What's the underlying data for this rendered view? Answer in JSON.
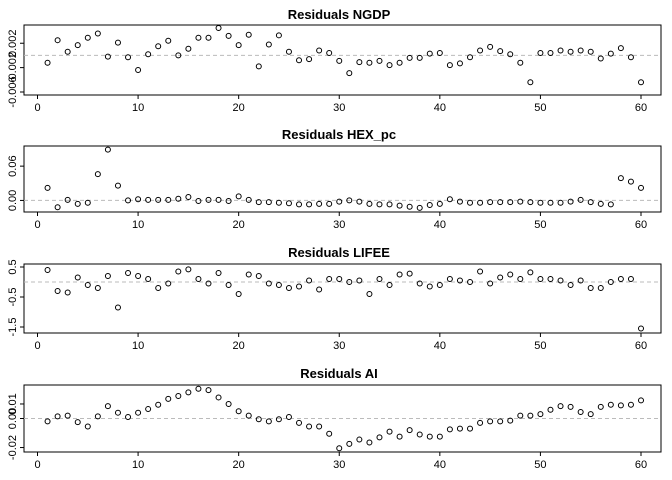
{
  "chart_data": [
    {
      "type": "scatter",
      "title": "Residuals NGDP",
      "xlabel": "",
      "ylabel": "",
      "xlim": [
        1,
        60
      ],
      "ylim": [
        -0.006,
        0.0045
      ],
      "xticks": [
        "0",
        "10",
        "20",
        "30",
        "40",
        "50",
        "60"
      ],
      "yticks": [
        "-0.006",
        "-0.002",
        "0.002"
      ],
      "ytick_values": [
        -0.006,
        -0.002,
        0.002
      ],
      "reference_line": 0,
      "x": [
        1,
        2,
        3,
        4,
        5,
        6,
        7,
        8,
        9,
        10,
        11,
        12,
        13,
        14,
        15,
        16,
        17,
        18,
        19,
        20,
        21,
        22,
        23,
        24,
        25,
        26,
        27,
        28,
        29,
        30,
        31,
        32,
        33,
        34,
        35,
        36,
        37,
        38,
        39,
        40,
        41,
        42,
        43,
        44,
        45,
        46,
        47,
        48,
        49,
        50,
        51,
        52,
        53,
        54,
        55,
        56,
        57,
        58,
        59,
        60
      ],
      "y": [
        -0.0012,
        0.0025,
        0.0006,
        0.0017,
        0.0029,
        0.0036,
        -0.0002,
        0.0021,
        -0.0003,
        -0.0024,
        0.0002,
        0.0015,
        0.0024,
        0,
        0.0011,
        0.0029,
        0.0029,
        0.0045,
        0.0032,
        0.0017,
        0.0034,
        -0.0018,
        0.0018,
        0.0033,
        0.0006,
        -0.0008,
        -0.0006,
        0.0008,
        0.0004,
        -0.0009,
        -0.0029,
        -0.0011,
        -0.0012,
        -0.0009,
        -0.0016,
        -0.0012,
        -0.0004,
        -0.0004,
        0.0003,
        0.0004,
        -0.0016,
        -0.0013,
        -0.0003,
        0.0008,
        0.0014,
        0.0007,
        0.0002,
        -0.0012,
        -0.0044,
        0.0004,
        0.0004,
        0.0008,
        0.0006,
        0.0008,
        0.0006,
        -0.0005,
        0.0003,
        0.0012,
        -0.0003,
        -0.0044
      ]
    },
    {
      "type": "scatter",
      "title": "Residuals HEX_pc",
      "xlabel": "",
      "ylabel": "",
      "xlim": [
        1,
        60
      ],
      "ylim": [
        -0.015,
        0.09
      ],
      "xticks": [
        "0",
        "10",
        "20",
        "30",
        "40",
        "50",
        "60"
      ],
      "yticks": [
        "0.00",
        "0.06"
      ],
      "ytick_values": [
        0,
        0.06
      ],
      "reference_line": 0,
      "x": [
        1,
        2,
        3,
        4,
        5,
        6,
        7,
        8,
        9,
        10,
        11,
        12,
        13,
        14,
        15,
        16,
        17,
        18,
        19,
        20,
        21,
        22,
        23,
        24,
        25,
        26,
        27,
        28,
        29,
        30,
        31,
        32,
        33,
        34,
        35,
        36,
        37,
        38,
        39,
        40,
        41,
        42,
        43,
        44,
        45,
        46,
        47,
        48,
        49,
        50,
        51,
        52,
        53,
        54,
        55,
        56,
        57,
        58,
        59,
        60
      ],
      "y": [
        0.022,
        -0.012,
        0.001,
        -0.006,
        -0.004,
        0.046,
        0.089,
        0.026,
        0,
        0.002,
        0.001,
        0.001,
        0.001,
        0.003,
        0.006,
        -0.001,
        0.001,
        0.001,
        -0.001,
        0.007,
        0.001,
        -0.003,
        -0.003,
        -0.004,
        -0.005,
        -0.007,
        -0.007,
        -0.006,
        -0.006,
        -0.002,
        0,
        -0.002,
        -0.006,
        -0.007,
        -0.007,
        -0.009,
        -0.011,
        -0.013,
        -0.008,
        -0.006,
        0.002,
        -0.002,
        -0.004,
        -0.004,
        -0.003,
        -0.003,
        -0.003,
        -0.002,
        -0.003,
        -0.004,
        -0.004,
        -0.004,
        -0.002,
        0.001,
        -0.003,
        -0.006,
        -0.007,
        0.039,
        0.033,
        0.022
      ]
    },
    {
      "type": "scatter",
      "title": "Residuals LIFEE",
      "xlabel": "",
      "ylabel": "",
      "xlim": [
        1,
        60
      ],
      "ylim": [
        -1.6,
        0.5
      ],
      "xticks": [
        "0",
        "10",
        "20",
        "30",
        "40",
        "50",
        "60"
      ],
      "yticks": [
        "-1.5",
        "-0.5",
        "0.5"
      ],
      "ytick_values": [
        -1.5,
        -0.5,
        0.5
      ],
      "reference_line": 0,
      "x": [
        1,
        2,
        3,
        4,
        5,
        6,
        7,
        8,
        9,
        10,
        11,
        12,
        13,
        14,
        15,
        16,
        17,
        18,
        19,
        20,
        21,
        22,
        23,
        24,
        25,
        26,
        27,
        28,
        29,
        30,
        31,
        32,
        33,
        34,
        35,
        36,
        37,
        38,
        39,
        40,
        41,
        42,
        43,
        44,
        45,
        46,
        47,
        48,
        49,
        50,
        51,
        52,
        53,
        54,
        55,
        56,
        57,
        58,
        59,
        60
      ],
      "y": [
        0.4,
        -0.3,
        -0.35,
        0.15,
        -0.1,
        -0.2,
        0.2,
        -0.85,
        0.3,
        0.2,
        0.1,
        -0.2,
        -0.05,
        0.35,
        0.42,
        0.1,
        -0.05,
        0.3,
        -0.1,
        -0.4,
        0.25,
        0.2,
        -0.05,
        -0.1,
        -0.2,
        -0.15,
        0.05,
        -0.25,
        0.1,
        0.1,
        0,
        0.05,
        -0.4,
        0.1,
        -0.1,
        0.25,
        0.28,
        -0.05,
        -0.15,
        -0.1,
        0.1,
        0.05,
        0,
        0.35,
        -0.05,
        0.15,
        0.25,
        0.1,
        0.32,
        0.1,
        0.1,
        0.05,
        -0.1,
        0.05,
        -0.2,
        -0.2,
        0,
        0.1,
        0.1,
        -1.55
      ]
    },
    {
      "type": "scatter",
      "title": "Residuals AI",
      "xlabel": "",
      "ylabel": "",
      "xlim": [
        1,
        60
      ],
      "ylim": [
        -0.021,
        0.021
      ],
      "xticks": [
        "0",
        "10",
        "20",
        "30",
        "40",
        "50",
        "60"
      ],
      "yticks": [
        "-0.02",
        "0.00",
        "0.01"
      ],
      "ytick_values": [
        -0.02,
        0,
        0.01
      ],
      "reference_line": 0,
      "x": [
        1,
        2,
        3,
        4,
        5,
        6,
        7,
        8,
        9,
        10,
        11,
        12,
        13,
        14,
        15,
        16,
        17,
        18,
        19,
        20,
        21,
        22,
        23,
        24,
        25,
        26,
        27,
        28,
        29,
        30,
        31,
        32,
        33,
        34,
        35,
        36,
        37,
        38,
        39,
        40,
        41,
        42,
        43,
        44,
        45,
        46,
        47,
        48,
        49,
        50,
        51,
        52,
        53,
        54,
        55,
        56,
        57,
        58,
        59,
        60
      ],
      "y": [
        -0.002,
        0.0015,
        0.002,
        -0.0025,
        -0.0055,
        0.0015,
        0.0085,
        0.004,
        0.001,
        0.004,
        0.0065,
        0.0095,
        0.0135,
        0.0155,
        0.018,
        0.0205,
        0.0195,
        0.0145,
        0.01,
        0.005,
        0.002,
        -0.0005,
        -0.002,
        -0.0005,
        0.001,
        -0.003,
        -0.0055,
        -0.0055,
        -0.0105,
        -0.0205,
        -0.0175,
        -0.0145,
        -0.0165,
        -0.013,
        -0.009,
        -0.0125,
        -0.008,
        -0.011,
        -0.0125,
        -0.0125,
        -0.0075,
        -0.007,
        -0.007,
        -0.003,
        -0.002,
        -0.002,
        -0.0015,
        0.002,
        0.002,
        0.003,
        0.006,
        0.0085,
        0.008,
        0.0045,
        0.003,
        0.008,
        0.0095,
        0.009,
        0.0095,
        0.0125
      ]
    }
  ]
}
